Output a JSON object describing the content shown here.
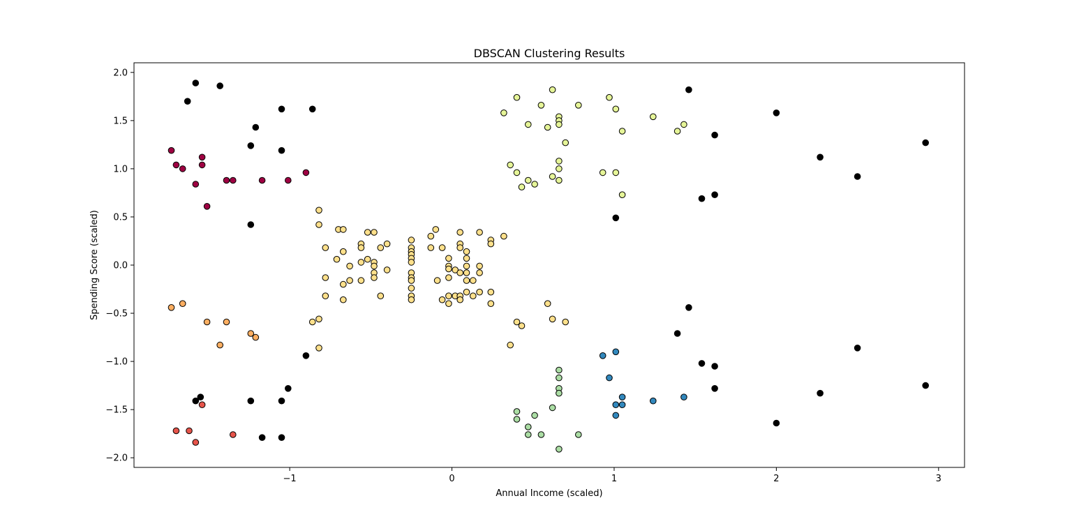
{
  "chart_data": {
    "type": "scatter",
    "title": "DBSCAN Clustering Results",
    "xlabel": "Annual Income (scaled)",
    "ylabel": "Spending Score (scaled)",
    "xlim": [
      -1.96,
      3.16
    ],
    "ylim": [
      -2.1,
      2.1
    ],
    "xticks": [
      -1,
      0,
      1,
      2,
      3
    ],
    "xtick_labels": [
      "−1",
      "0",
      "1",
      "2",
      "3"
    ],
    "yticks": [
      -2.0,
      -1.5,
      -1.0,
      -0.5,
      0.0,
      0.5,
      1.0,
      1.5,
      2.0
    ],
    "ytick_labels": [
      "−2.0",
      "−1.5",
      "−1.0",
      "−0.5",
      "0.0",
      "0.5",
      "1.0",
      "1.5",
      "2.0"
    ],
    "grid": false,
    "legend": "none",
    "series": [
      {
        "color": "#000000",
        "points": [
          [
            -1.58,
            1.89
          ],
          [
            -1.43,
            1.86
          ],
          [
            -1.63,
            1.7
          ],
          [
            -1.05,
            1.62
          ],
          [
            -0.86,
            1.62
          ],
          [
            -1.21,
            1.43
          ],
          [
            -1.24,
            1.24
          ],
          [
            -1.05,
            1.19
          ],
          [
            -1.24,
            0.42
          ],
          [
            -0.9,
            -0.94
          ],
          [
            -1.01,
            -1.28
          ],
          [
            -1.55,
            -1.37
          ],
          [
            -1.58,
            -1.41
          ],
          [
            -1.24,
            -1.41
          ],
          [
            -1.05,
            -1.41
          ],
          [
            -1.17,
            -1.79
          ],
          [
            -1.05,
            -1.79
          ],
          [
            1.46,
            1.82
          ],
          [
            2.0,
            1.58
          ],
          [
            1.62,
            1.35
          ],
          [
            2.92,
            1.27
          ],
          [
            2.27,
            1.12
          ],
          [
            2.5,
            0.92
          ],
          [
            1.62,
            0.73
          ],
          [
            1.54,
            0.69
          ],
          [
            1.01,
            0.49
          ],
          [
            1.46,
            -0.44
          ],
          [
            1.39,
            -0.71
          ],
          [
            2.5,
            -0.86
          ],
          [
            1.54,
            -1.02
          ],
          [
            1.62,
            -1.05
          ],
          [
            2.92,
            -1.25
          ],
          [
            1.62,
            -1.28
          ],
          [
            2.27,
            -1.33
          ],
          [
            2.0,
            -1.64
          ]
        ]
      },
      {
        "color": "#9e0142",
        "points": [
          [
            -1.73,
            1.19
          ],
          [
            -1.54,
            1.12
          ],
          [
            -1.7,
            1.04
          ],
          [
            -1.54,
            1.04
          ],
          [
            -1.66,
            1.0
          ],
          [
            -0.9,
            0.96
          ],
          [
            -1.39,
            0.88
          ],
          [
            -1.35,
            0.88
          ],
          [
            -1.17,
            0.88
          ],
          [
            -1.01,
            0.88
          ],
          [
            -1.58,
            0.84
          ],
          [
            -1.51,
            0.61
          ]
        ]
      },
      {
        "color": "#fdae61",
        "points": [
          [
            -1.73,
            -0.44
          ],
          [
            -1.66,
            -0.4
          ],
          [
            -1.51,
            -0.59
          ],
          [
            -1.39,
            -0.59
          ],
          [
            -1.43,
            -0.83
          ],
          [
            -1.24,
            -0.71
          ],
          [
            -1.21,
            -0.75
          ]
        ]
      },
      {
        "color": "#e6544a",
        "points": [
          [
            -1.54,
            -1.45
          ],
          [
            -1.7,
            -1.72
          ],
          [
            -1.62,
            -1.72
          ],
          [
            -1.35,
            -1.76
          ],
          [
            -1.58,
            -1.84
          ]
        ]
      },
      {
        "color": "#fee08b",
        "points": [
          [
            -0.82,
            0.57
          ],
          [
            -0.82,
            0.42
          ],
          [
            -0.7,
            0.37
          ],
          [
            -0.67,
            0.37
          ],
          [
            -0.52,
            0.34
          ],
          [
            -0.48,
            0.34
          ],
          [
            -0.25,
            0.26
          ],
          [
            -0.1,
            0.37
          ],
          [
            -0.13,
            0.3
          ],
          [
            0.05,
            0.34
          ],
          [
            0.17,
            0.34
          ],
          [
            0.32,
            0.3
          ],
          [
            0.24,
            0.26
          ],
          [
            0.24,
            0.22
          ],
          [
            -0.78,
            0.18
          ],
          [
            -0.67,
            0.14
          ],
          [
            -0.56,
            0.22
          ],
          [
            -0.56,
            0.18
          ],
          [
            -0.44,
            0.18
          ],
          [
            -0.4,
            0.22
          ],
          [
            -0.25,
            0.18
          ],
          [
            -0.25,
            0.14
          ],
          [
            -0.25,
            0.11
          ],
          [
            -0.25,
            0.07
          ],
          [
            -0.25,
            0.03
          ],
          [
            -0.13,
            0.18
          ],
          [
            -0.06,
            0.18
          ],
          [
            0.05,
            0.22
          ],
          [
            0.05,
            0.18
          ],
          [
            0.09,
            0.14
          ],
          [
            -0.71,
            0.06
          ],
          [
            -0.52,
            0.06
          ],
          [
            -0.56,
            0.03
          ],
          [
            -0.48,
            0.03
          ],
          [
            -0.02,
            0.07
          ],
          [
            0.09,
            0.07
          ],
          [
            -0.63,
            -0.01
          ],
          [
            -0.48,
            -0.01
          ],
          [
            -0.02,
            -0.01
          ],
          [
            -0.02,
            -0.04
          ],
          [
            0.02,
            -0.05
          ],
          [
            0.09,
            -0.01
          ],
          [
            0.17,
            -0.01
          ],
          [
            -0.4,
            -0.05
          ],
          [
            -0.48,
            -0.08
          ],
          [
            -0.25,
            -0.08
          ],
          [
            0.05,
            -0.08
          ],
          [
            0.09,
            -0.08
          ],
          [
            0.17,
            -0.08
          ],
          [
            -0.78,
            -0.13
          ],
          [
            -0.48,
            -0.13
          ],
          [
            -0.25,
            -0.13
          ],
          [
            -0.25,
            -0.16
          ],
          [
            -0.02,
            -0.13
          ],
          [
            0.09,
            -0.16
          ],
          [
            0.13,
            -0.16
          ],
          [
            -0.09,
            -0.16
          ],
          [
            -0.67,
            -0.2
          ],
          [
            -0.63,
            -0.16
          ],
          [
            -0.56,
            -0.16
          ],
          [
            -0.25,
            -0.24
          ],
          [
            0.09,
            -0.28
          ],
          [
            0.17,
            -0.28
          ],
          [
            0.24,
            -0.28
          ],
          [
            -0.78,
            -0.32
          ],
          [
            -0.44,
            -0.32
          ],
          [
            -0.25,
            -0.32
          ],
          [
            -0.25,
            -0.36
          ],
          [
            -0.02,
            -0.32
          ],
          [
            0.02,
            -0.32
          ],
          [
            0.05,
            -0.32
          ],
          [
            0.13,
            -0.32
          ],
          [
            -0.06,
            -0.36
          ],
          [
            0.05,
            -0.36
          ],
          [
            -0.67,
            -0.36
          ],
          [
            -0.02,
            -0.4
          ],
          [
            0.24,
            -0.4
          ],
          [
            -0.82,
            -0.56
          ],
          [
            -0.86,
            -0.59
          ],
          [
            -0.82,
            -0.86
          ],
          [
            0.59,
            -0.4
          ],
          [
            0.62,
            -0.56
          ],
          [
            0.4,
            -0.59
          ],
          [
            0.7,
            -0.59
          ],
          [
            0.43,
            -0.63
          ],
          [
            0.36,
            -0.83
          ]
        ]
      },
      {
        "color": "#e6f598",
        "points": [
          [
            0.62,
            1.82
          ],
          [
            0.4,
            1.74
          ],
          [
            0.97,
            1.74
          ],
          [
            0.55,
            1.66
          ],
          [
            0.78,
            1.66
          ],
          [
            1.01,
            1.62
          ],
          [
            0.32,
            1.58
          ],
          [
            0.66,
            1.54
          ],
          [
            1.24,
            1.54
          ],
          [
            0.66,
            1.5
          ],
          [
            0.47,
            1.46
          ],
          [
            0.66,
            1.46
          ],
          [
            1.43,
            1.46
          ],
          [
            0.59,
            1.43
          ],
          [
            1.05,
            1.39
          ],
          [
            1.39,
            1.39
          ],
          [
            0.7,
            1.27
          ],
          [
            0.66,
            1.08
          ],
          [
            0.36,
            1.04
          ],
          [
            0.66,
            1.0
          ],
          [
            0.4,
            0.96
          ],
          [
            0.93,
            0.96
          ],
          [
            1.01,
            0.96
          ],
          [
            0.62,
            0.92
          ],
          [
            0.47,
            0.88
          ],
          [
            0.66,
            0.88
          ],
          [
            0.51,
            0.84
          ],
          [
            0.43,
            0.81
          ],
          [
            1.05,
            0.73
          ]
        ]
      },
      {
        "color": "#abdda4",
        "points": [
          [
            0.66,
            -1.09
          ],
          [
            0.66,
            -1.17
          ],
          [
            0.66,
            -1.28
          ],
          [
            0.66,
            -1.33
          ],
          [
            0.62,
            -1.48
          ],
          [
            0.4,
            -1.52
          ],
          [
            0.51,
            -1.56
          ],
          [
            0.4,
            -1.6
          ],
          [
            0.47,
            -1.68
          ],
          [
            0.47,
            -1.76
          ],
          [
            0.55,
            -1.76
          ],
          [
            0.78,
            -1.76
          ],
          [
            0.66,
            -1.91
          ]
        ]
      },
      {
        "color": "#3288bd",
        "points": [
          [
            1.01,
            -0.9
          ],
          [
            0.93,
            -0.94
          ],
          [
            0.97,
            -1.17
          ],
          [
            1.05,
            -1.37
          ],
          [
            1.43,
            -1.37
          ],
          [
            1.24,
            -1.41
          ],
          [
            1.01,
            -1.45
          ],
          [
            1.05,
            -1.45
          ],
          [
            1.01,
            -1.56
          ]
        ]
      }
    ]
  }
}
